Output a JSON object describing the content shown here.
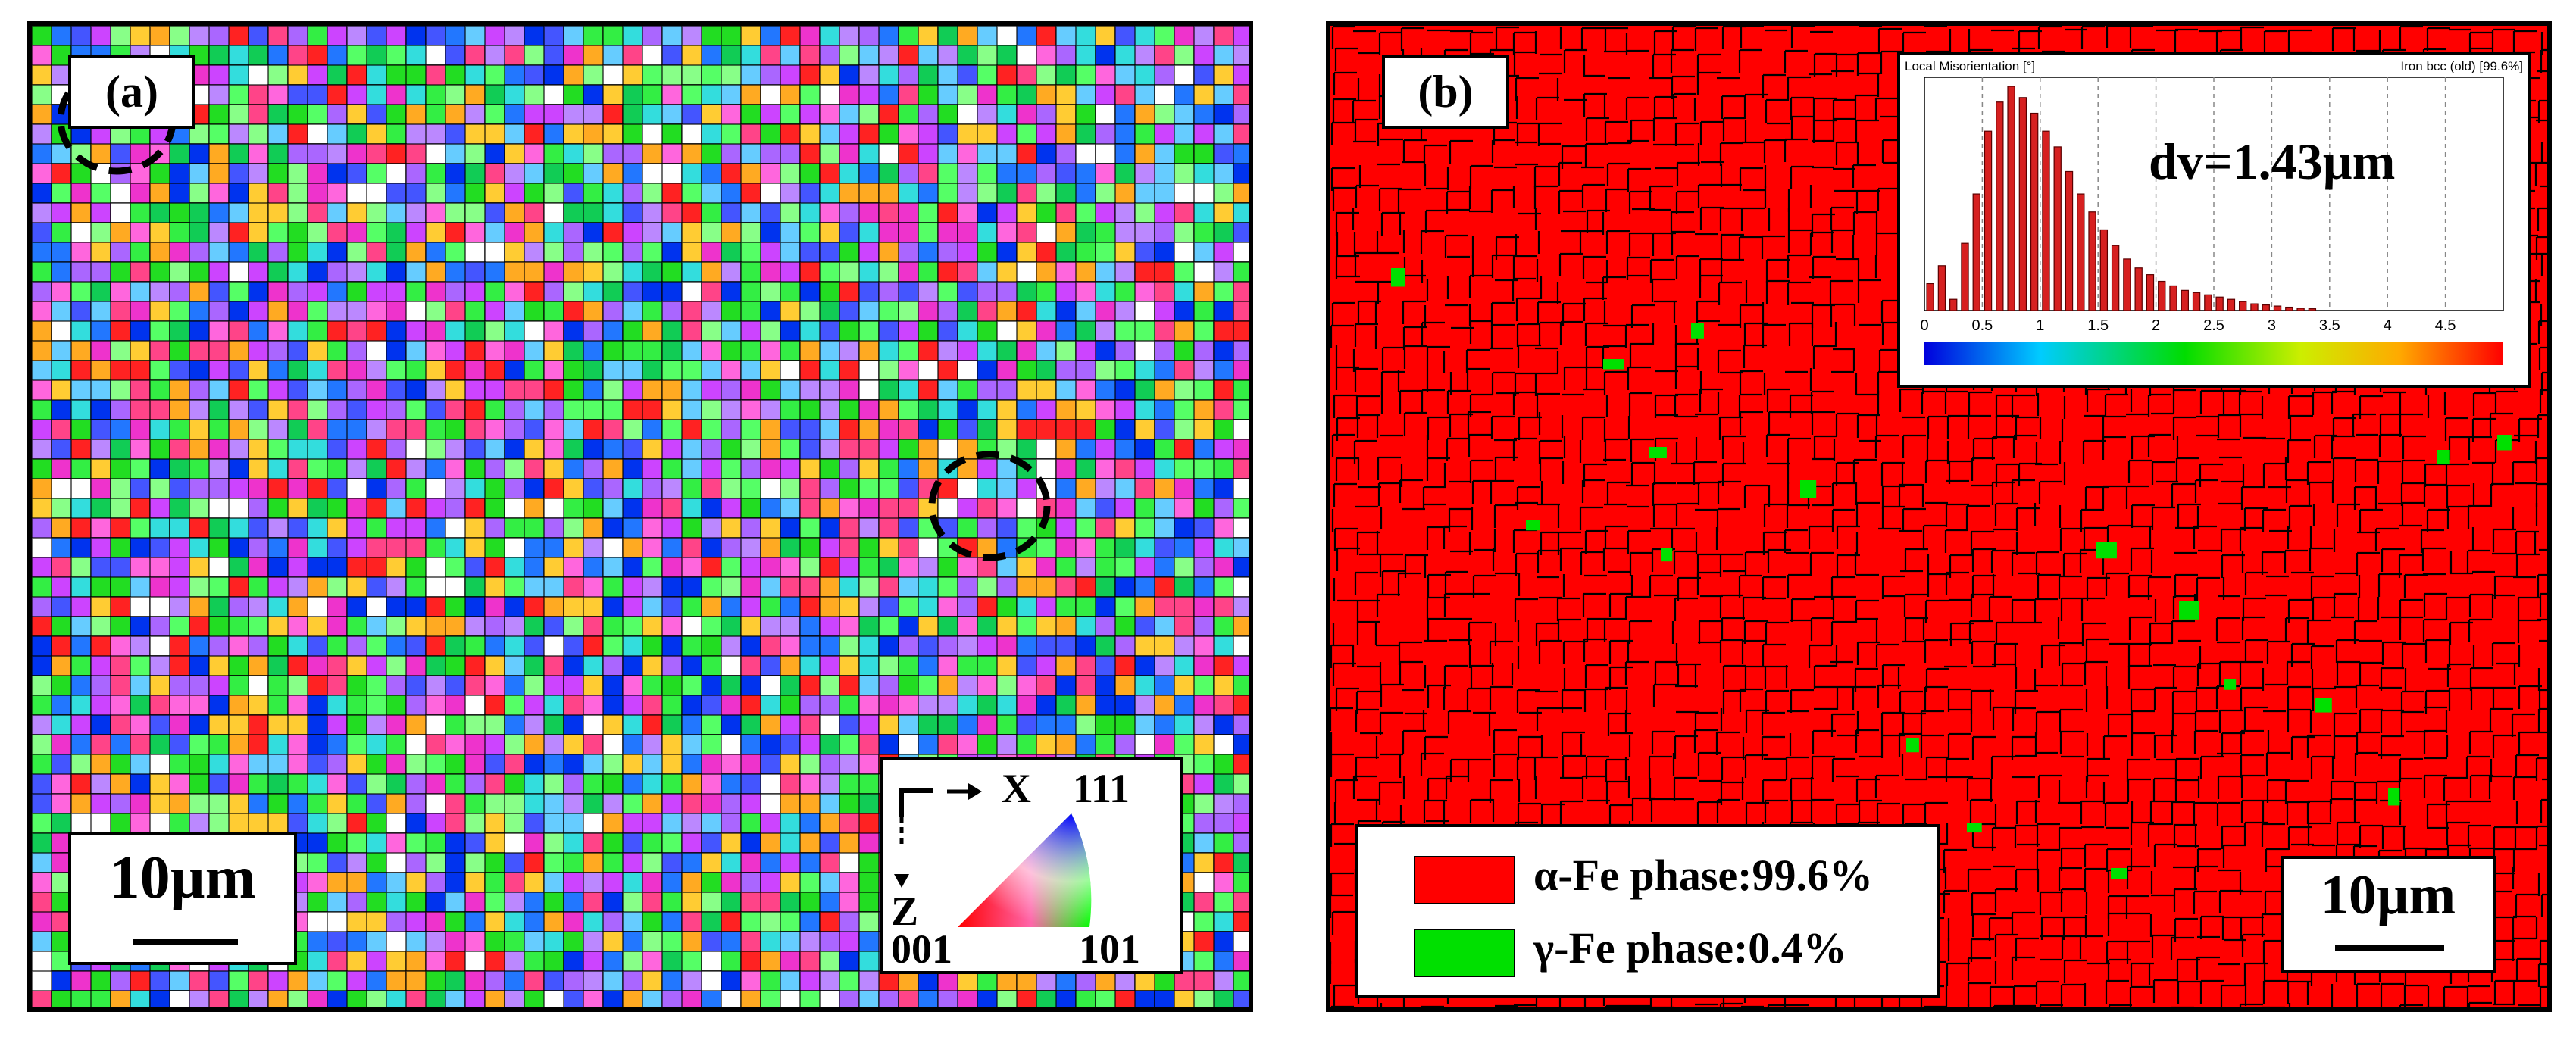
{
  "panel_a": {
    "label": "(a)",
    "scale_bar": "10µm",
    "ipf_key": {
      "axis_x": "X",
      "axis_z": "Z",
      "pole_top": "111",
      "pole_left": "001",
      "pole_right": "101"
    }
  },
  "panel_b": {
    "label": "(b)",
    "scale_bar": "10µm",
    "legend": [
      {
        "text": "α-Fe phase:99.6%",
        "color": "#ff0000"
      },
      {
        "text": "γ-Fe phase:0.4%",
        "color": "#00e000"
      }
    ],
    "inset": {
      "title_left": "Local Misorientation [°]",
      "title_right": "Iron bcc (old) [99.6%]",
      "annotation": "dv=1.43µm",
      "ticks": [
        "0",
        "0.5",
        "1",
        "1.5",
        "2",
        "2.5",
        "3",
        "3.5",
        "4",
        "4.5"
      ],
      "histogram": {
        "type": "bar",
        "x": [
          0.05,
          0.15,
          0.25,
          0.35,
          0.45,
          0.55,
          0.65,
          0.75,
          0.85,
          0.95,
          1.05,
          1.15,
          1.25,
          1.35,
          1.45,
          1.55,
          1.65,
          1.75,
          1.85,
          1.95,
          2.05,
          2.15,
          2.25,
          2.35,
          2.45,
          2.55,
          2.65,
          2.75,
          2.85,
          2.95,
          3.05,
          3.15,
          3.25,
          3.35
        ],
        "values": [
          0.12,
          0.2,
          0.05,
          0.3,
          0.52,
          0.8,
          0.93,
          1.0,
          0.95,
          0.88,
          0.8,
          0.73,
          0.62,
          0.52,
          0.44,
          0.36,
          0.29,
          0.23,
          0.19,
          0.16,
          0.13,
          0.11,
          0.09,
          0.08,
          0.07,
          0.06,
          0.05,
          0.04,
          0.03,
          0.025,
          0.02,
          0.015,
          0.01,
          0.008
        ]
      }
    }
  },
  "colors": {
    "alpha_fe": "#ff0000",
    "gamma_fe": "#00e000",
    "boundary": "#000000"
  }
}
